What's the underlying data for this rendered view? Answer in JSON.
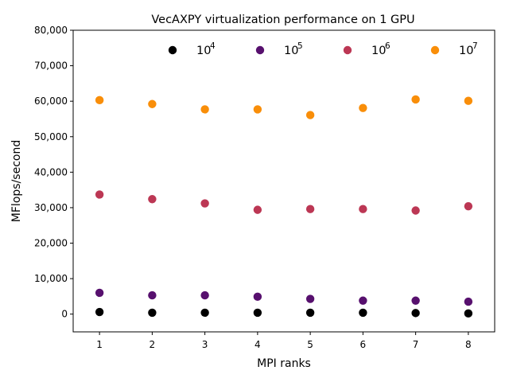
{
  "chart_data": {
    "type": "scatter",
    "title": "VecAXPY virtualization performance on 1 GPU",
    "xlabel": "MPI ranks",
    "ylabel": "MFlops/second",
    "x": [
      1,
      2,
      3,
      4,
      5,
      6,
      7,
      8
    ],
    "xlim": [
      0.5,
      8.5
    ],
    "ylim": [
      -5000,
      80000
    ],
    "xticks": [
      "1",
      "2",
      "3",
      "4",
      "5",
      "6",
      "7",
      "8"
    ],
    "yticks": [
      "0",
      "10,000",
      "20,000",
      "30,000",
      "40,000",
      "50,000",
      "60,000",
      "70,000",
      "80,000"
    ],
    "legend_position": "top",
    "grid": false,
    "series": [
      {
        "name_base": "10",
        "name_exp": "4",
        "color": "#000000",
        "values": [
          600,
          400,
          400,
          400,
          400,
          400,
          300,
          200
        ]
      },
      {
        "name_base": "10",
        "name_exp": "5",
        "color": "#57106e",
        "values": [
          6000,
          5300,
          5300,
          4900,
          4300,
          3800,
          3800,
          3500
        ]
      },
      {
        "name_base": "10",
        "name_exp": "6",
        "color": "#bc3754",
        "values": [
          33700,
          32400,
          31200,
          29400,
          29600,
          29600,
          29200,
          30400
        ]
      },
      {
        "name_base": "10",
        "name_exp": "7",
        "color": "#f98e09",
        "values": [
          60300,
          59200,
          57700,
          57700,
          56100,
          58100,
          60500,
          60100
        ]
      }
    ]
  }
}
